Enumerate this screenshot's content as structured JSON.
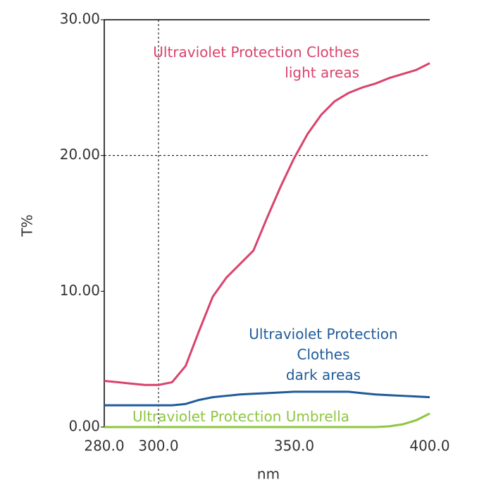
{
  "chart_data": {
    "type": "line",
    "x_label": "nm",
    "y_label": "T%",
    "x": [
      280,
      285,
      290,
      295,
      300,
      305,
      310,
      315,
      320,
      325,
      330,
      335,
      340,
      345,
      350,
      355,
      360,
      365,
      370,
      375,
      380,
      385,
      390,
      395,
      400
    ],
    "series": [
      {
        "name": "Ultraviolet Protection Clothes\nlight areas",
        "color": "#d9436b",
        "values": [
          3.4,
          3.3,
          3.2,
          3.1,
          3.1,
          3.3,
          4.5,
          7.1,
          9.6,
          11.0,
          12.0,
          13.0,
          15.4,
          17.7,
          19.8,
          21.6,
          23.0,
          24.0,
          24.6,
          25.0,
          25.3,
          25.7,
          26.0,
          26.3,
          26.8
        ]
      },
      {
        "name": "Ultraviolet Protection\nClothes\ndark areas",
        "color": "#1f5b9a",
        "values": [
          1.6,
          1.6,
          1.6,
          1.6,
          1.6,
          1.6,
          1.7,
          2.0,
          2.2,
          2.3,
          2.4,
          2.45,
          2.5,
          2.55,
          2.6,
          2.6,
          2.6,
          2.6,
          2.6,
          2.5,
          2.4,
          2.35,
          2.3,
          2.25,
          2.2
        ]
      },
      {
        "name": "Ultraviolet Protection Umbrella",
        "color": "#8dc63f",
        "values": [
          0,
          0,
          0,
          0,
          0,
          0,
          0,
          0,
          0,
          0,
          0,
          0,
          0,
          0,
          0,
          0,
          0,
          0,
          0,
          0,
          0,
          0.05,
          0.2,
          0.5,
          1.0
        ]
      }
    ],
    "xlim": [
      280,
      400
    ],
    "xticks": [
      {
        "value": 280,
        "label": "280.0"
      },
      {
        "value": 300,
        "label": "300.0"
      },
      {
        "value": 350,
        "label": "350.0"
      },
      {
        "value": 400,
        "label": "400.0"
      }
    ],
    "ylim": [
      0,
      30
    ],
    "yticks": [
      {
        "value": 0,
        "label": "0.00"
      },
      {
        "value": 10,
        "label": "10.00"
      },
      {
        "value": 20,
        "label": "20.00"
      },
      {
        "value": 30,
        "label": "30.00"
      }
    ],
    "grid_x": [
      300
    ],
    "grid_y": [
      20
    ]
  }
}
